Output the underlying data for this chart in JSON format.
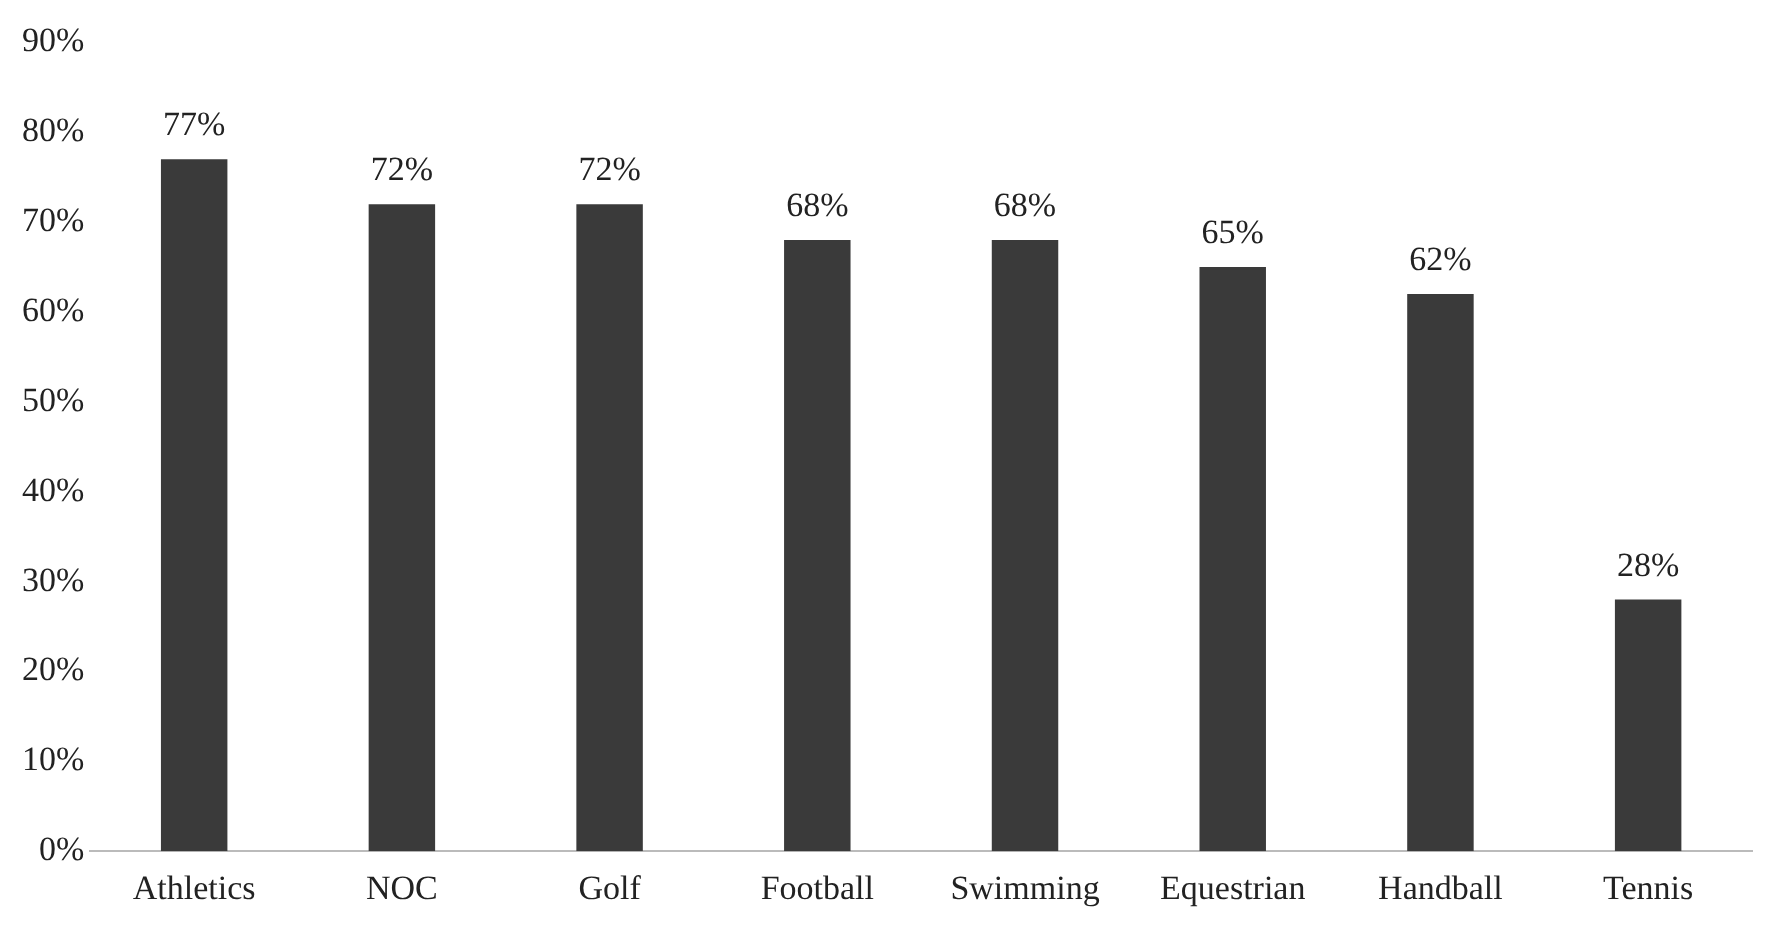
{
  "chart_data": {
    "type": "bar",
    "categories": [
      "Athletics",
      "NOC",
      "Golf",
      "Football",
      "Swimming",
      "Equestrian",
      "Handball",
      "Tennis"
    ],
    "values": [
      77,
      72,
      72,
      68,
      68,
      65,
      62,
      28
    ],
    "value_labels": [
      "77%",
      "72%",
      "72%",
      "68%",
      "68%",
      "65%",
      "62%",
      "28%"
    ],
    "color": "#3a3a3a",
    "ylim": [
      0,
      90
    ],
    "yticks": [
      {
        "value": 0,
        "label": "0%"
      },
      {
        "value": 10,
        "label": "10%"
      },
      {
        "value": 20,
        "label": "20%"
      },
      {
        "value": 30,
        "label": "30%"
      },
      {
        "value": 40,
        "label": "40%"
      },
      {
        "value": 50,
        "label": "50%"
      },
      {
        "value": 60,
        "label": "60%"
      },
      {
        "value": 70,
        "label": "70%"
      },
      {
        "value": 80,
        "label": "80%"
      },
      {
        "value": 90,
        "label": "90%"
      }
    ],
    "grid": false,
    "legend": false
  }
}
